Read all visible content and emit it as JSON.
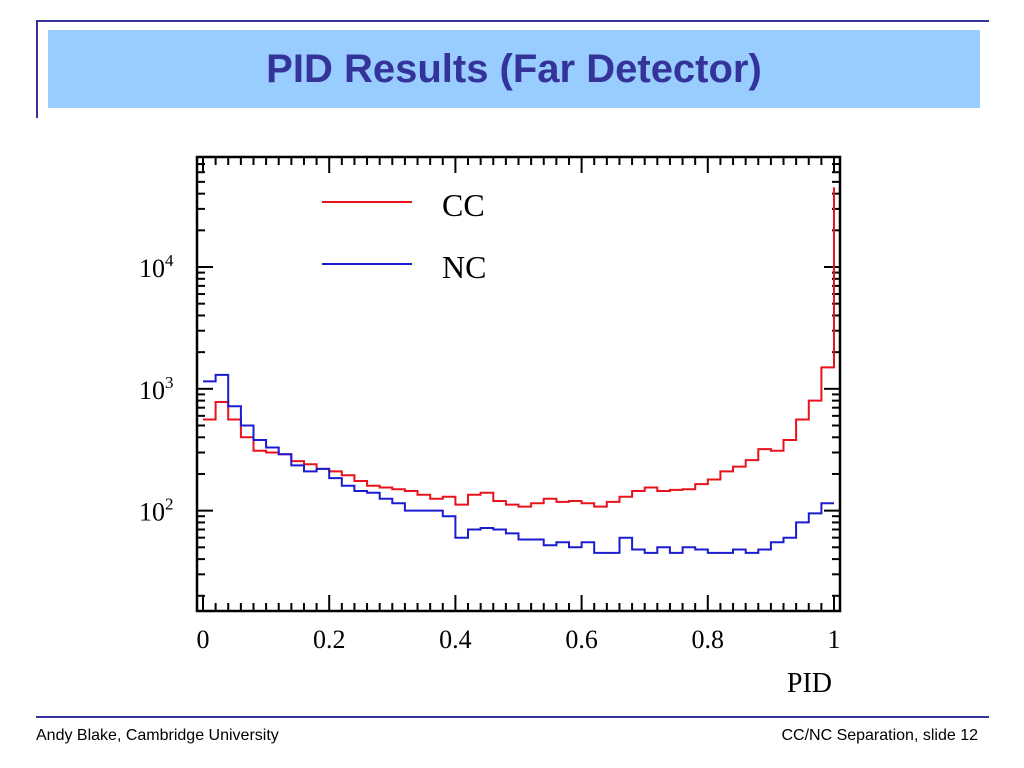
{
  "slide": {
    "title": "PID Results (Far Detector)",
    "footer_left": "Andy Blake, Cambridge University",
    "footer_right": "CC/NC Separation, slide 12"
  },
  "colors": {
    "title_bg": "#99ccff",
    "title_text": "#333399",
    "rules": "#333399",
    "cc": "#e8131b",
    "nc": "#1b1bd0"
  },
  "chart_data": {
    "type": "line",
    "style": "step-histogram",
    "xlabel": "PID",
    "ylabel": "",
    "xlim": [
      0,
      1
    ],
    "ylim": [
      15,
      80000
    ],
    "yscale": "log",
    "x_ticks": [
      0,
      0.2,
      0.4,
      0.6,
      0.8,
      1
    ],
    "x_tick_labels": [
      "0",
      "0.2",
      "0.4",
      "0.6",
      "0.8",
      "1"
    ],
    "y_ticks": [
      100,
      1000,
      10000
    ],
    "y_tick_labels": [
      {
        "base": "10",
        "exp": "2"
      },
      {
        "base": "10",
        "exp": "3"
      },
      {
        "base": "10",
        "exp": "4"
      }
    ],
    "grid": false,
    "legend": "top-center",
    "bin_edges": [
      0.0,
      0.02,
      0.04,
      0.06,
      0.08,
      0.1,
      0.12,
      0.14,
      0.16,
      0.18,
      0.2,
      0.22,
      0.24,
      0.26,
      0.28,
      0.3,
      0.32,
      0.34,
      0.36,
      0.38,
      0.4,
      0.42,
      0.44,
      0.46,
      0.48,
      0.5,
      0.52,
      0.54,
      0.56,
      0.58,
      0.6,
      0.62,
      0.64,
      0.66,
      0.68,
      0.7,
      0.72,
      0.74,
      0.76,
      0.78,
      0.8,
      0.82,
      0.84,
      0.86,
      0.88,
      0.9,
      0.92,
      0.94,
      0.96,
      0.98,
      1.0
    ],
    "series": [
      {
        "name": "CC",
        "color": "#e8131b",
        "values": [
          560,
          780,
          560,
          400,
          310,
          300,
          290,
          255,
          240,
          220,
          210,
          195,
          175,
          160,
          155,
          150,
          145,
          135,
          125,
          130,
          112,
          135,
          140,
          120,
          112,
          108,
          115,
          125,
          118,
          120,
          115,
          108,
          118,
          130,
          145,
          155,
          145,
          148,
          150,
          165,
          180,
          210,
          230,
          260,
          320,
          310,
          380,
          560,
          800,
          1500,
          45000
        ]
      },
      {
        "name": "NC",
        "color": "#1b1bd0",
        "values": [
          1150,
          1300,
          720,
          500,
          380,
          330,
          290,
          235,
          210,
          220,
          185,
          160,
          145,
          140,
          125,
          115,
          100,
          100,
          100,
          90,
          60,
          70,
          72,
          70,
          65,
          58,
          58,
          52,
          55,
          50,
          55,
          45,
          45,
          60,
          48,
          45,
          50,
          45,
          50,
          48,
          45,
          45,
          48,
          45,
          48,
          55,
          60,
          80,
          95,
          115,
          115
        ]
      }
    ]
  }
}
